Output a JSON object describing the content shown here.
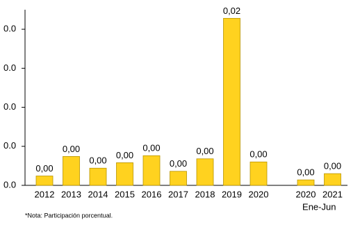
{
  "chart_data": {
    "type": "bar",
    "categories": [
      "2012",
      "2013",
      "2014",
      "2015",
      "2016",
      "2017",
      "2018",
      "2019",
      "2020",
      null,
      "2020",
      "2021"
    ],
    "values": [
      0.0012,
      0.0037,
      0.0022,
      0.0029,
      0.0038,
      0.0018,
      0.0034,
      0.0214,
      0.003,
      null,
      0.0007,
      0.0015
    ],
    "value_labels": [
      "0,00",
      "0,00",
      "0,00",
      "0,00",
      "0,00",
      "0,00",
      "0,00",
      "0,02",
      "0,00",
      null,
      "0,00",
      "0,00"
    ],
    "color": "#ffd21f",
    "ylim": [
      0,
      0.0225
    ],
    "yticks": [
      {
        "value": 0,
        "label": "0.0"
      },
      {
        "value": 0.005,
        "label": "0.0"
      },
      {
        "value": 0.01,
        "label": "0.0"
      },
      {
        "value": 0.015,
        "label": "0.0"
      },
      {
        "value": 0.02,
        "label": "0.0"
      }
    ],
    "group_label": "Ene-Jun",
    "note": "*Nota: Participación porcentual."
  }
}
